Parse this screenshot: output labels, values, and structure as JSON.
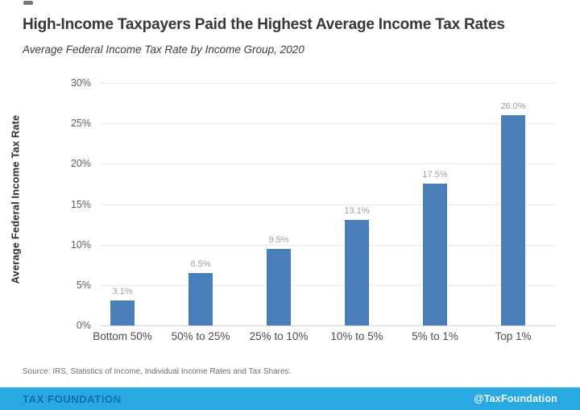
{
  "header": {
    "title": "High-Income Taxpayers Paid the Highest Average Income Tax Rates",
    "subtitle": "Average Federal Income Tax Rate by Income Group, 2020"
  },
  "chart_data": {
    "type": "bar",
    "title": "High-Income Taxpayers Paid the Highest Average Income Tax Rates",
    "subtitle": "Average Federal Income Tax Rate by Income Group, 2020",
    "categories": [
      "Bottom 50%",
      "50% to 25%",
      "25% to 10%",
      "10% to 5%",
      "5% to 1%",
      "Top 1%"
    ],
    "values": [
      3.1,
      6.5,
      9.5,
      13.1,
      17.5,
      26.0
    ],
    "value_labels": [
      "3.1%",
      "6.5%",
      "9.5%",
      "13.1%",
      "17.5%",
      "26.0%"
    ],
    "xlabel": "",
    "ylabel": "Average Federal Income Tax Rate",
    "ylim": [
      0,
      30
    ],
    "ytick_step": 5,
    "ytick_labels": [
      "0%",
      "5%",
      "10%",
      "15%",
      "20%",
      "25%",
      "30%"
    ],
    "grid": true,
    "legend": "none",
    "bar_color": "#4a7ebb"
  },
  "source_note": "Source: IRS, Statistics of Income, Individual Income Rates and Tax Shares.",
  "footer": {
    "brand": "TAX FOUNDATION",
    "handle": "@TaxFoundation"
  },
  "colors": {
    "bar": "#4a7ebb",
    "footer_background": "#29a9e1",
    "footer_brand_text": "#0d6fb4",
    "footer_handle_text": "#f3fbff",
    "gridline": "#e9e9e9",
    "title_text": "#373737",
    "data_label_text": "#9f9f9f"
  }
}
